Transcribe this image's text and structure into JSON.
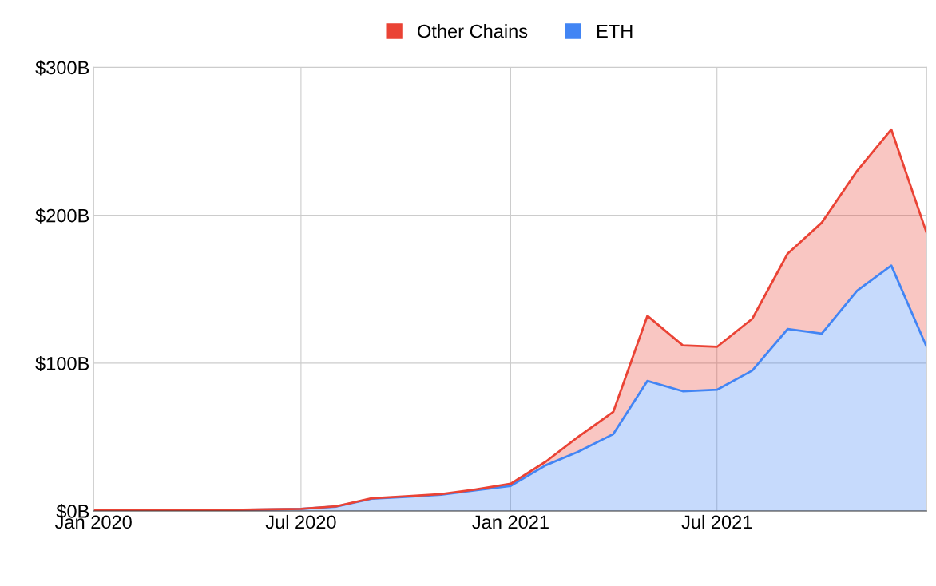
{
  "chart_data": {
    "type": "area",
    "stacked": true,
    "x": [
      "2020-01",
      "2020-02",
      "2020-03",
      "2020-04",
      "2020-05",
      "2020-06",
      "2020-07",
      "2020-08",
      "2020-09",
      "2020-10",
      "2020-11",
      "2020-12",
      "2021-01",
      "2021-02",
      "2021-03",
      "2021-04",
      "2021-05",
      "2021-06",
      "2021-07",
      "2021-08",
      "2021-09",
      "2021-10",
      "2021-11",
      "2021-12",
      "2022-01"
    ],
    "series": [
      {
        "name": "ETH",
        "color": "#4285f4",
        "values": [
          0.6,
          0.7,
          0.5,
          0.6,
          0.7,
          1.0,
          1.4,
          3,
          8.3,
          9.5,
          11,
          14,
          17,
          31,
          40,
          52,
          88,
          81,
          82,
          95,
          123,
          120,
          149,
          166,
          111
        ]
      },
      {
        "name": "Other Chains",
        "color": "#ea4335",
        "values": [
          0.1,
          0.1,
          0.1,
          0.1,
          0.1,
          0.1,
          0.1,
          0.2,
          0.3,
          0.5,
          0.4,
          0.6,
          1.4,
          2.5,
          10,
          15,
          44,
          31,
          29,
          35,
          51,
          75,
          81,
          92,
          77
        ]
      }
    ],
    "xlim": [
      "2020-01",
      "2022-01"
    ],
    "xticks": [
      {
        "value": "2020-01",
        "label": "Jan 2020"
      },
      {
        "value": "2020-07",
        "label": "Jul 2020"
      },
      {
        "value": "2021-01",
        "label": "Jan 2021"
      },
      {
        "value": "2021-07",
        "label": "Jul 2021"
      }
    ],
    "ylim": [
      0,
      300
    ],
    "yticks": [
      {
        "value": 0,
        "label": "$0B"
      },
      {
        "value": 100,
        "label": "$100B"
      },
      {
        "value": 200,
        "label": "$200B"
      },
      {
        "value": 300,
        "label": "$300B"
      }
    ],
    "grid": true,
    "legend": "top"
  }
}
